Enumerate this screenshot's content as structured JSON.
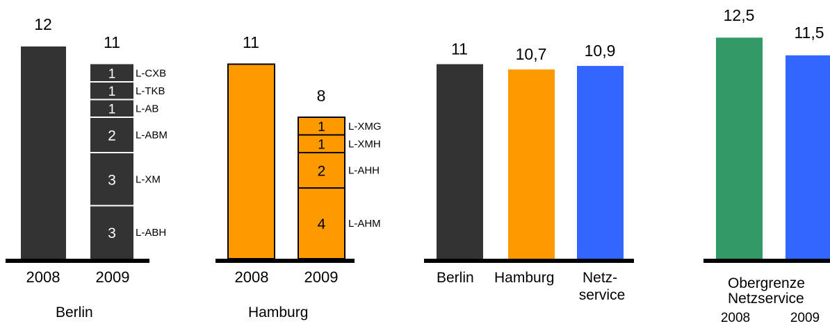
{
  "colors": {
    "berlin": "#333333",
    "hamburg": "#ff9900",
    "netzservice": "#3366ff",
    "green": "#339966",
    "axis": "#000000",
    "segment_divider": "#ffffff",
    "orange_outline": "#000000"
  },
  "captions": {
    "berlin": "Berlin",
    "hamburg": "Hamburg",
    "obergrenze_line1": "Obergrenze",
    "obergrenze_line2": "Netzservice"
  },
  "chart_data": [
    {
      "type": "bar",
      "title": "Berlin",
      "categories": [
        "2008",
        "2009"
      ],
      "values": [
        12,
        11
      ],
      "ylim": [
        0,
        12.5
      ],
      "stack_2009": [
        {
          "label": "L-ABH",
          "value": 3
        },
        {
          "label": "L-XM",
          "value": 3
        },
        {
          "label": "L-ABM",
          "value": 2
        },
        {
          "label": "L-AB",
          "value": 1
        },
        {
          "label": "L-TKB",
          "value": 1
        },
        {
          "label": "L-CXB",
          "value": 1
        }
      ]
    },
    {
      "type": "bar",
      "title": "Hamburg",
      "categories": [
        "2008",
        "2009"
      ],
      "values": [
        11,
        8
      ],
      "ylim": [
        0,
        12.5
      ],
      "stack_2009": [
        {
          "label": "L-AHM",
          "value": 4
        },
        {
          "label": "L-AHH",
          "value": 2
        },
        {
          "label": "L-XMH",
          "value": 1
        },
        {
          "label": "L-XMG",
          "value": 1
        }
      ]
    },
    {
      "type": "bar",
      "categories": [
        "Berlin",
        "Hamburg",
        "Netz-\nservice"
      ],
      "values": [
        11,
        10.7,
        10.9
      ],
      "value_labels": [
        "11",
        "10,7",
        "10,9"
      ],
      "ylim": [
        0,
        12.5
      ]
    },
    {
      "type": "bar",
      "title": "Obergrenze Netzservice",
      "categories": [
        "2008",
        "2009"
      ],
      "values": [
        12.5,
        11.5
      ],
      "value_labels": [
        "12,5",
        "11,5"
      ],
      "ylim": [
        0,
        12.5
      ]
    }
  ]
}
